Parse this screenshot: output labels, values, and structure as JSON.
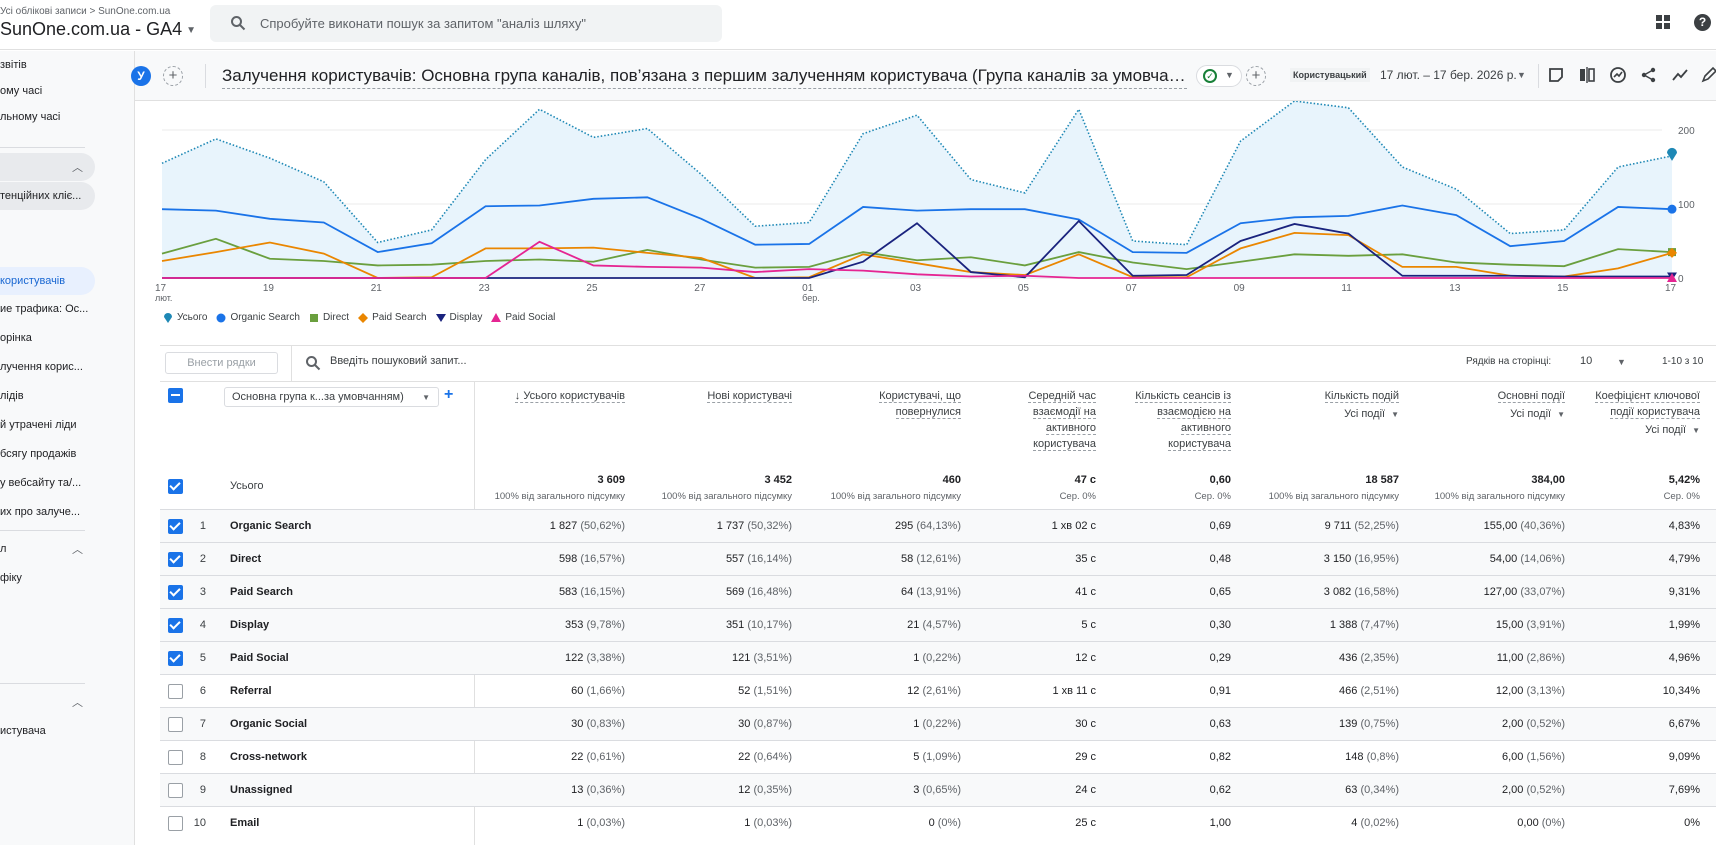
{
  "topbar": {
    "breadcrumb": "Усі облікові записи > SunOne.com.ua",
    "property": "SunOne.com.ua - GA4",
    "search_placeholder": "Спробуйте виконати пошук за запитом \"аналіз шляху\"",
    "icons": [
      "apps-icon",
      "help-icon"
    ]
  },
  "sidebar": {
    "items": [
      {
        "label": "звітів"
      },
      {
        "label": "ому часі"
      },
      {
        "label": "льному часі"
      },
      {
        "label": "тенційних кліє...",
        "state": "pill"
      },
      {
        "label": "користувачів",
        "state": "active"
      },
      {
        "label": "ие трафика: Ос..."
      },
      {
        "label": "орінка"
      },
      {
        "label": "лучення корис..."
      },
      {
        "label": "лідів"
      },
      {
        "label": "й утрачені ліди"
      },
      {
        "label": "бсягу продажів"
      },
      {
        "label": "у вебсайту та/..."
      },
      {
        "label": "их про залуче..."
      },
      {
        "label": "л"
      },
      {
        "label": "фіку"
      },
      {
        "label": "истувача"
      }
    ]
  },
  "report": {
    "avatar_letter": "У",
    "title": "Залучення користувачів: Основна група каналів, пов’язана з першим залученням користувача (Група каналів за умовчанням)",
    "date_badge": "Користувацький",
    "date_range": "17 лют. – 17 бер. 2026 р.",
    "toolbar_icons": [
      "note-icon",
      "compare-icon",
      "insights-icon",
      "share-icon",
      "trend-icon",
      "edit-icon"
    ]
  },
  "chart_data": {
    "type": "line",
    "title": "",
    "x": [
      "17 лют.",
      "18",
      "19",
      "20",
      "21",
      "22",
      "23",
      "24",
      "25",
      "26",
      "27",
      "28",
      "01 бер.",
      "02",
      "03",
      "04",
      "05",
      "06",
      "07",
      "08",
      "09",
      "10",
      "11",
      "12",
      "13",
      "14",
      "15",
      "16",
      "17"
    ],
    "x_tick_labels": [
      "17",
      "19",
      "21",
      "23",
      "25",
      "27",
      "01",
      "03",
      "05",
      "07",
      "09",
      "11",
      "13",
      "15",
      "17"
    ],
    "x_tick_sublabels": {
      "17": "лют.",
      "01": "бер."
    },
    "ylim": [
      0,
      230
    ],
    "y_ticks": [
      0,
      100,
      200
    ],
    "grid": true,
    "legend_position": "bottom-left",
    "series": [
      {
        "name": "Усього",
        "color": "#1e88b5",
        "style": "dotted-area",
        "marker": "pin",
        "values": [
          155,
          188,
          162,
          130,
          48,
          65,
          160,
          228,
          190,
          202,
          140,
          70,
          75,
          195,
          220,
          133,
          115,
          228,
          50,
          45,
          185,
          260,
          230,
          150,
          120,
          60,
          65,
          150,
          165
        ]
      },
      {
        "name": "Organic Search",
        "color": "#1a73e8",
        "style": "solid",
        "marker": "circle",
        "values": [
          93,
          91,
          80,
          75,
          35,
          47,
          97,
          98,
          107,
          109,
          80,
          45,
          46,
          96,
          91,
          93,
          93,
          79,
          35,
          34,
          74,
          82,
          84,
          98,
          85,
          43,
          50,
          96,
          93
        ]
      },
      {
        "name": "Direct",
        "color": "#6a9f3e",
        "style": "solid",
        "marker": "square",
        "values": [
          33,
          53,
          26,
          23,
          17,
          18,
          23,
          25,
          22,
          38,
          25,
          14,
          15,
          35,
          24,
          28,
          17,
          35,
          21,
          12,
          22,
          32,
          30,
          32,
          21,
          18,
          16,
          39,
          35
        ]
      },
      {
        "name": "Paid Search",
        "color": "#ea8600",
        "style": "solid",
        "marker": "diamond",
        "values": [
          23,
          35,
          48,
          33,
          0,
          1,
          40,
          40,
          41,
          34,
          27,
          0,
          1,
          32,
          20,
          8,
          4,
          32,
          1,
          1,
          40,
          61,
          58,
          15,
          15,
          3,
          2,
          13,
          34
        ]
      },
      {
        "name": "Display",
        "color": "#1a237e",
        "style": "solid",
        "marker": "triangle-down",
        "values": [
          0,
          0,
          0,
          0,
          0,
          0,
          0,
          0,
          0,
          0,
          0,
          0,
          0,
          22,
          74,
          8,
          1,
          77,
          3,
          4,
          50,
          73,
          60,
          3,
          3,
          3,
          2,
          2,
          2
        ]
      },
      {
        "name": "Paid Social",
        "color": "#e52592",
        "style": "solid",
        "marker": "triangle-up",
        "values": [
          0,
          0,
          0,
          0,
          0,
          0,
          0,
          49,
          17,
          15,
          14,
          8,
          12,
          10,
          5,
          2,
          3,
          0,
          0,
          0,
          0,
          0,
          0,
          0,
          0,
          0,
          0,
          0,
          0
        ]
      }
    ]
  },
  "table": {
    "add_rows_label": "Внести рядки",
    "search_placeholder": "Введіть пошуковий запит...",
    "rows_per_page_label": "Рядків на сторінці:",
    "rows_per_page": "10",
    "pager": "1-10 з 10",
    "dimension_select": "Основна група к...за умовчанням)",
    "columns": [
      {
        "label": "↓ Усього користувачів",
        "sub": ""
      },
      {
        "label": "Нові користувачі",
        "sub": ""
      },
      {
        "label": "Користувачі, що повернулися",
        "sub": ""
      },
      {
        "label": "Середній час взаємодії на активного користувача",
        "sub": ""
      },
      {
        "label": "Кількість сеансів із взаємодією на активного користувача",
        "sub": ""
      },
      {
        "label": "Кількість подій",
        "sub": "Усі події"
      },
      {
        "label": "Основні події",
        "sub": "Усі події"
      },
      {
        "label": "Коефіцієнт ключової події користувача",
        "sub": "Усі події"
      }
    ],
    "totals": {
      "label": "Усього",
      "values": [
        {
          "v": "3 609",
          "s": "100% від загального підсумку"
        },
        {
          "v": "3 452",
          "s": "100% від загального підсумку"
        },
        {
          "v": "460",
          "s": "100% від загального підсумку"
        },
        {
          "v": "47 с",
          "s": "Сер. 0%"
        },
        {
          "v": "0,60",
          "s": "Сер. 0%"
        },
        {
          "v": "18 587",
          "s": "100% від загального підсумку"
        },
        {
          "v": "384,00",
          "s": "100% від загального підсумку"
        },
        {
          "v": "5,42%",
          "s": "Сер. 0%"
        }
      ]
    },
    "rows": [
      {
        "idx": "1",
        "name": "Organic Search",
        "checked": true,
        "cells": [
          [
            "1 827",
            "(50,62%)"
          ],
          [
            "1 737",
            "(50,32%)"
          ],
          [
            "295",
            "(64,13%)"
          ],
          [
            "1 хв 02 с",
            ""
          ],
          [
            "0,69",
            ""
          ],
          [
            "9 711",
            "(52,25%)"
          ],
          [
            "155,00",
            "(40,36%)"
          ],
          [
            "4,83%",
            ""
          ]
        ]
      },
      {
        "idx": "2",
        "name": "Direct",
        "checked": true,
        "cells": [
          [
            "598",
            "(16,57%)"
          ],
          [
            "557",
            "(16,14%)"
          ],
          [
            "58",
            "(12,61%)"
          ],
          [
            "35 с",
            ""
          ],
          [
            "0,48",
            ""
          ],
          [
            "3 150",
            "(16,95%)"
          ],
          [
            "54,00",
            "(14,06%)"
          ],
          [
            "4,79%",
            ""
          ]
        ]
      },
      {
        "idx": "3",
        "name": "Paid Search",
        "checked": true,
        "cells": [
          [
            "583",
            "(16,15%)"
          ],
          [
            "569",
            "(16,48%)"
          ],
          [
            "64",
            "(13,91%)"
          ],
          [
            "41 с",
            ""
          ],
          [
            "0,65",
            ""
          ],
          [
            "3 082",
            "(16,58%)"
          ],
          [
            "127,00",
            "(33,07%)"
          ],
          [
            "9,31%",
            ""
          ]
        ]
      },
      {
        "idx": "4",
        "name": "Display",
        "checked": true,
        "cells": [
          [
            "353",
            "(9,78%)"
          ],
          [
            "351",
            "(10,17%)"
          ],
          [
            "21",
            "(4,57%)"
          ],
          [
            "5 с",
            ""
          ],
          [
            "0,30",
            ""
          ],
          [
            "1 388",
            "(7,47%)"
          ],
          [
            "15,00",
            "(3,91%)"
          ],
          [
            "1,99%",
            ""
          ]
        ]
      },
      {
        "idx": "5",
        "name": "Paid Social",
        "checked": true,
        "cells": [
          [
            "122",
            "(3,38%)"
          ],
          [
            "121",
            "(3,51%)"
          ],
          [
            "1",
            "(0,22%)"
          ],
          [
            "12 с",
            ""
          ],
          [
            "0,29",
            ""
          ],
          [
            "436",
            "(2,35%)"
          ],
          [
            "11,00",
            "(2,86%)"
          ],
          [
            "4,96%",
            ""
          ]
        ]
      },
      {
        "idx": "6",
        "name": "Referral",
        "checked": false,
        "cells": [
          [
            "60",
            "(1,66%)"
          ],
          [
            "52",
            "(1,51%)"
          ],
          [
            "12",
            "(2,61%)"
          ],
          [
            "1 хв 11 с",
            ""
          ],
          [
            "0,91",
            ""
          ],
          [
            "466",
            "(2,51%)"
          ],
          [
            "12,00",
            "(3,13%)"
          ],
          [
            "10,34%",
            ""
          ]
        ]
      },
      {
        "idx": "7",
        "name": "Organic Social",
        "checked": false,
        "cells": [
          [
            "30",
            "(0,83%)"
          ],
          [
            "30",
            "(0,87%)"
          ],
          [
            "1",
            "(0,22%)"
          ],
          [
            "30 с",
            ""
          ],
          [
            "0,63",
            ""
          ],
          [
            "139",
            "(0,75%)"
          ],
          [
            "2,00",
            "(0,52%)"
          ],
          [
            "6,67%",
            ""
          ]
        ]
      },
      {
        "idx": "8",
        "name": "Cross-network",
        "checked": false,
        "cells": [
          [
            "22",
            "(0,61%)"
          ],
          [
            "22",
            "(0,64%)"
          ],
          [
            "5",
            "(1,09%)"
          ],
          [
            "29 с",
            ""
          ],
          [
            "0,82",
            ""
          ],
          [
            "148",
            "(0,8%)"
          ],
          [
            "6,00",
            "(1,56%)"
          ],
          [
            "9,09%",
            ""
          ]
        ]
      },
      {
        "idx": "9",
        "name": "Unassigned",
        "checked": false,
        "cells": [
          [
            "13",
            "(0,36%)"
          ],
          [
            "12",
            "(0,35%)"
          ],
          [
            "3",
            "(0,65%)"
          ],
          [
            "24 с",
            ""
          ],
          [
            "0,62",
            ""
          ],
          [
            "63",
            "(0,34%)"
          ],
          [
            "2,00",
            "(0,52%)"
          ],
          [
            "7,69%",
            ""
          ]
        ]
      },
      {
        "idx": "10",
        "name": "Email",
        "checked": false,
        "cells": [
          [
            "1",
            "(0,03%)"
          ],
          [
            "1",
            "(0,03%)"
          ],
          [
            "0",
            "(0%)"
          ],
          [
            "25 с",
            ""
          ],
          [
            "1,00",
            ""
          ],
          [
            "4",
            "(0,02%)"
          ],
          [
            "0,00",
            "(0%)"
          ],
          [
            "0%",
            ""
          ]
        ]
      }
    ]
  }
}
